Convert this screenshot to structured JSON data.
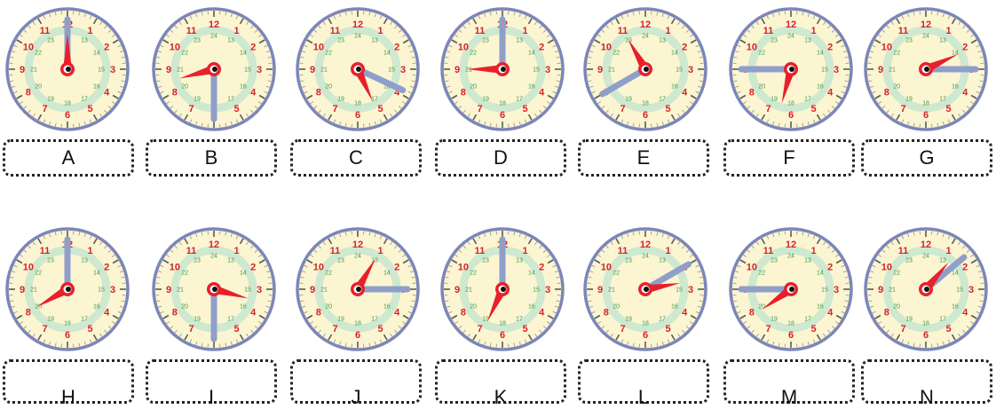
{
  "clocks": [
    {
      "letter": "A",
      "hour_hand_deg": 0,
      "minute_hand_deg": 0
    },
    {
      "letter": "B",
      "hour_hand_deg": 255,
      "minute_hand_deg": 180
    },
    {
      "letter": "C",
      "hour_hand_deg": 155,
      "minute_hand_deg": 115
    },
    {
      "letter": "D",
      "hour_hand_deg": 270,
      "minute_hand_deg": 0
    },
    {
      "letter": "E",
      "hour_hand_deg": 330,
      "minute_hand_deg": 240
    },
    {
      "letter": "F",
      "hour_hand_deg": 195,
      "minute_hand_deg": 270
    },
    {
      "letter": "G",
      "hour_hand_deg": 65,
      "minute_hand_deg": 90
    },
    {
      "letter": "H",
      "hour_hand_deg": 240,
      "minute_hand_deg": 0
    },
    {
      "letter": "I",
      "hour_hand_deg": 105,
      "minute_hand_deg": 180
    },
    {
      "letter": "J",
      "hour_hand_deg": 30,
      "minute_hand_deg": 90
    },
    {
      "letter": "K",
      "hour_hand_deg": 205,
      "minute_hand_deg": 0
    },
    {
      "letter": "L",
      "hour_hand_deg": 80,
      "minute_hand_deg": 60
    },
    {
      "letter": "M",
      "hour_hand_deg": 235,
      "minute_hand_deg": 270
    },
    {
      "letter": "N",
      "hour_hand_deg": 40,
      "minute_hand_deg": 50
    }
  ],
  "dial": {
    "hours": [
      "12",
      "1",
      "2",
      "3",
      "4",
      "5",
      "6",
      "7",
      "8",
      "9",
      "10",
      "11"
    ],
    "hours24": [
      "24",
      "13",
      "14",
      "15",
      "16",
      "17",
      "18",
      "19",
      "20",
      "21",
      "22",
      "23"
    ]
  },
  "colors": {
    "face": "#fbf5d2",
    "ring": "#cfe8d0",
    "rim": "#7c86b8",
    "hour_hand": "#e8202a",
    "minute_hand": "#8f9fc9",
    "hour_numbers": "#d8212a",
    "numbers_24": "#3a9a48"
  }
}
